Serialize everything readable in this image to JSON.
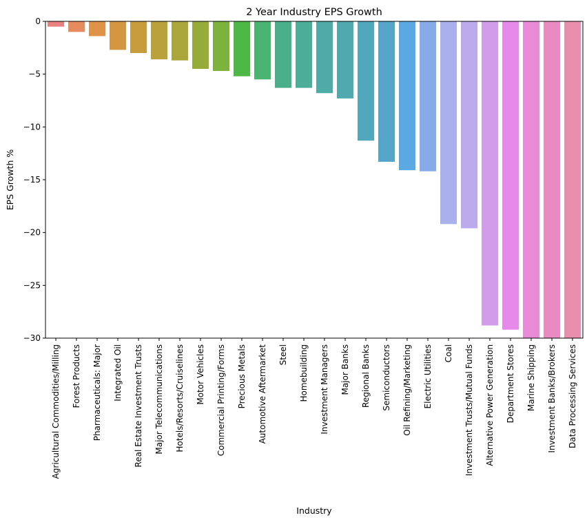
{
  "chart_data": {
    "type": "bar",
    "title": "2 Year Industry EPS Growth",
    "xlabel": "Industry",
    "ylabel": "EPS Growth %",
    "ylim": [
      -30,
      0
    ],
    "yticks": [
      0,
      -5,
      -10,
      -15,
      -20,
      -25,
      -30
    ],
    "ytick_labels": [
      "0",
      "−5",
      "−10",
      "−15",
      "−20",
      "−25",
      "−30"
    ],
    "grid": false,
    "categories": [
      "Agricultural Commodities/Milling",
      "Forest Products",
      "Pharmaceuticals: Major",
      "Integrated Oil",
      "Real Estate Investment Trusts",
      "Major Telecommunications",
      "Hotels/Resorts/Cruiselines",
      "Motor Vehicles",
      "Commercial Printing/Forms",
      "Precious Metals",
      "Automotive Aftermarket",
      "Steel",
      "Homebuilding",
      "Investment Managers",
      "Major Banks",
      "Regional Banks",
      "Semiconductors",
      "Oil Refining/Marketing",
      "Electric Utilities",
      "Coal",
      "Investment Trusts/Mutual Funds",
      "Alternative Power Generation",
      "Department Stores",
      "Marine Shipping",
      "Investment Banks/Brokers",
      "Data Processing Services"
    ],
    "values": [
      -0.5,
      -1.0,
      -1.4,
      -2.7,
      -3.0,
      -3.6,
      -3.7,
      -4.5,
      -4.7,
      -5.2,
      -5.5,
      -6.3,
      -6.3,
      -6.8,
      -7.3,
      -11.3,
      -13.3,
      -14.1,
      -14.2,
      -19.2,
      -19.6,
      -28.8,
      -29.2,
      -30.5,
      -30.5,
      -30.5
    ],
    "colors": [
      "#e8807f",
      "#e58b5e",
      "#df9346",
      "#d49640",
      "#c89c3c",
      "#b9a23b",
      "#aaa63a",
      "#96ab3a",
      "#7db23c",
      "#4db845",
      "#4ab472",
      "#4aae8b",
      "#4cad99",
      "#4eaba6",
      "#50a9ae",
      "#51a7bb",
      "#54a5c8",
      "#5aa9e2",
      "#87abe8",
      "#a9b0eb",
      "#bdaaee",
      "#d19deb",
      "#e58aeb",
      "#e98ad6",
      "#e98bc0",
      "#e88fae"
    ]
  }
}
